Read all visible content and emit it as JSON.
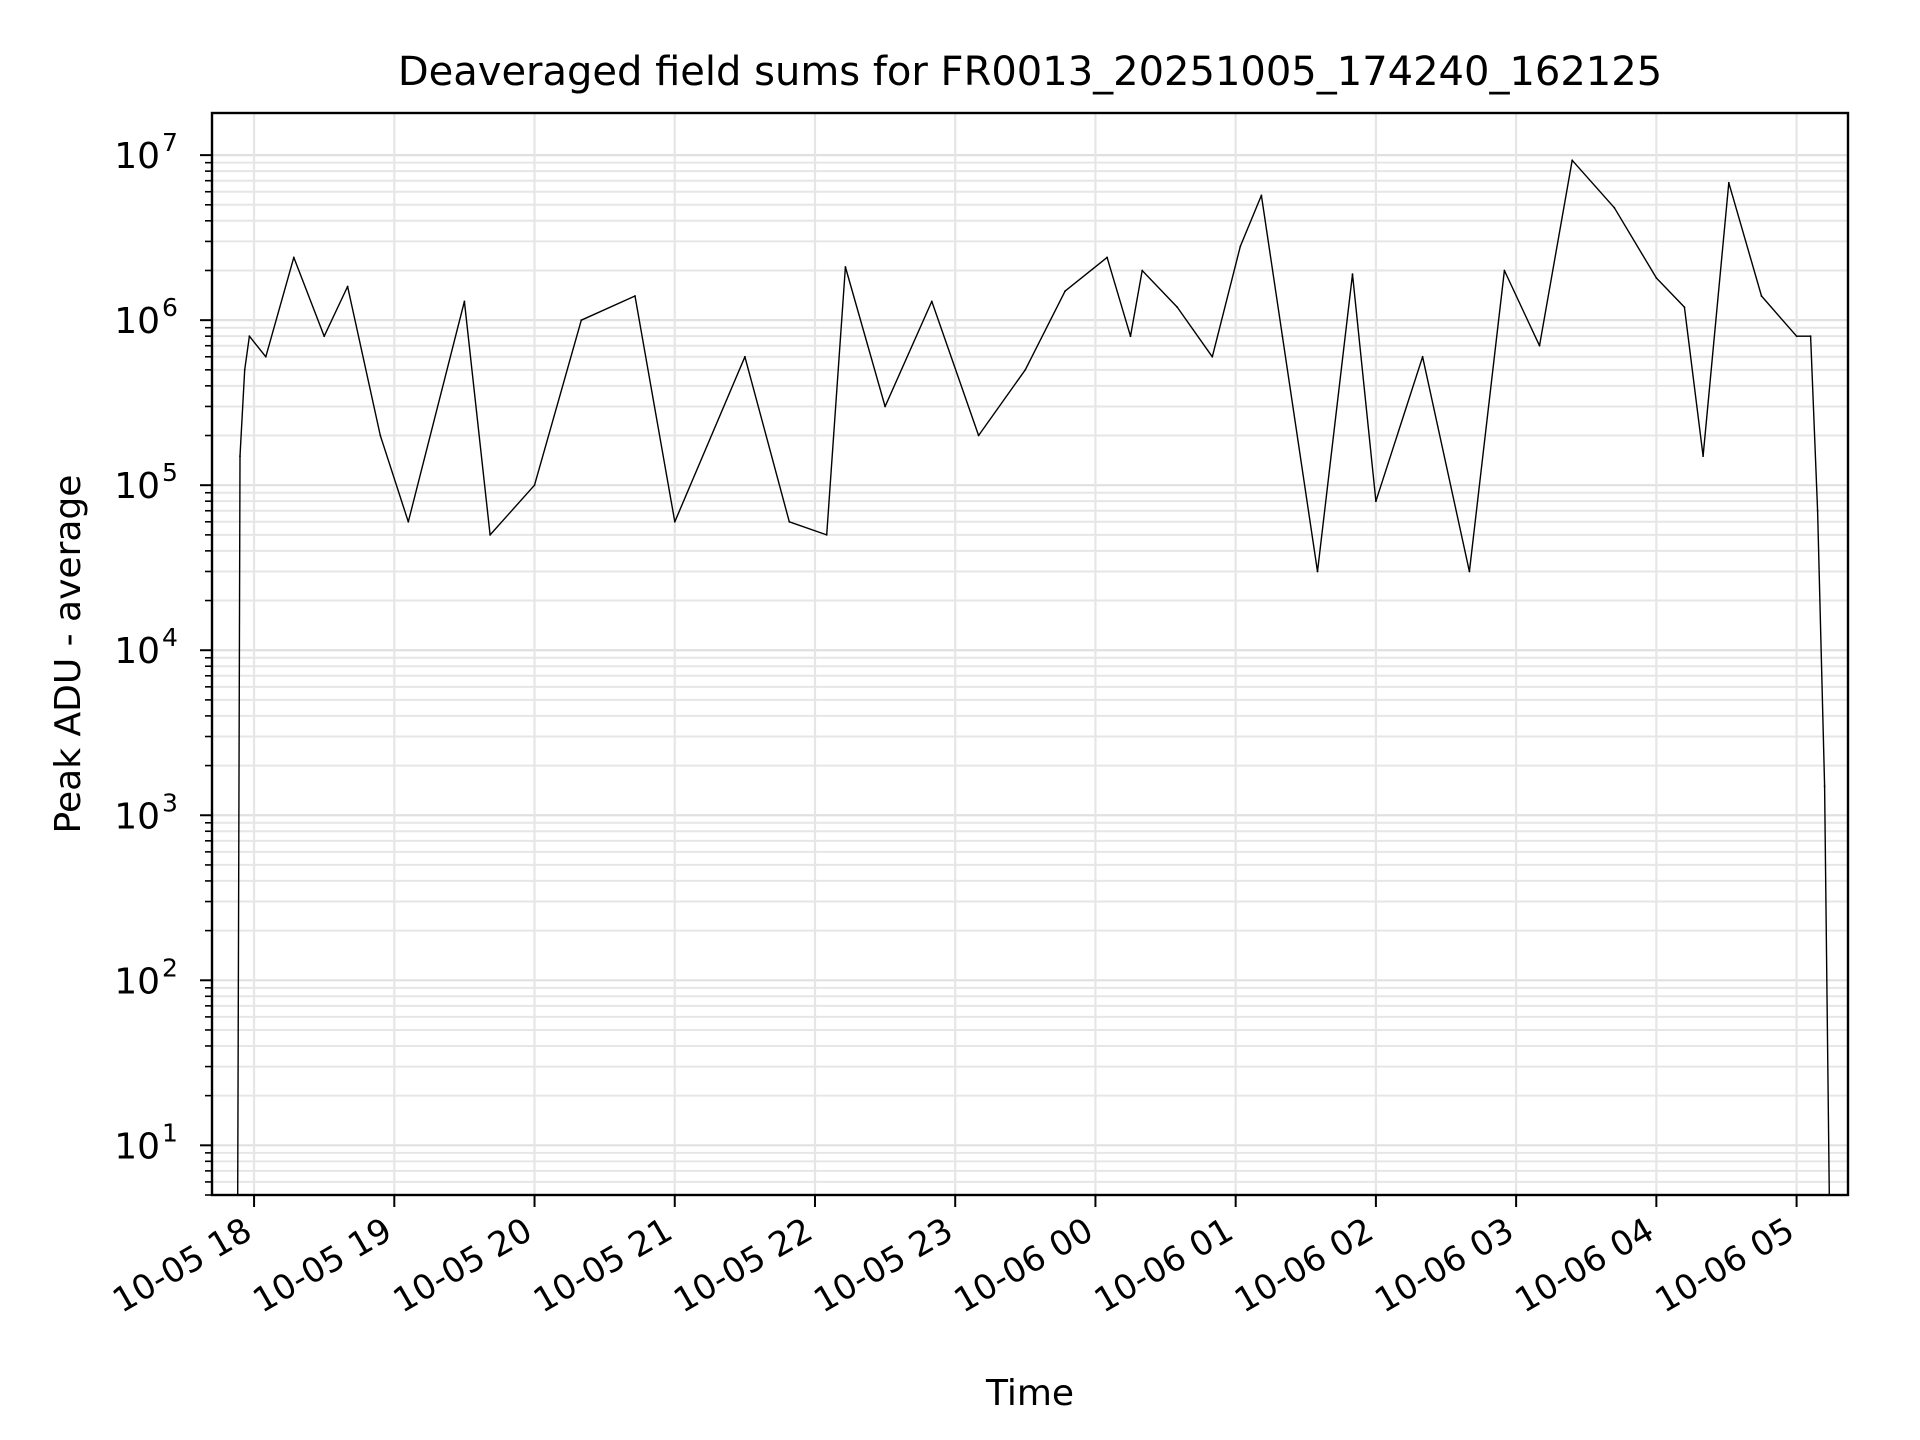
{
  "chart_data": {
    "type": "line",
    "title": "Deaveraged field sums for FR0013_20251005_174240_162125",
    "xlabel": "Time",
    "ylabel": "Peak ADU - average",
    "yscale": "log",
    "ylim": [
      5,
      18000000
    ],
    "xlim": [
      "10-05 17:42",
      "10-06 05:22"
    ],
    "grid": "major and minor",
    "line_color": "#000000",
    "x_ticks": [
      {
        "label": "10-05 18",
        "time": "10-05 18:00"
      },
      {
        "label": "10-05 19",
        "time": "10-05 19:00"
      },
      {
        "label": "10-05 20",
        "time": "10-05 20:00"
      },
      {
        "label": "10-05 21",
        "time": "10-05 21:00"
      },
      {
        "label": "10-05 22",
        "time": "10-05 22:00"
      },
      {
        "label": "10-05 23",
        "time": "10-05 23:00"
      },
      {
        "label": "10-06 00",
        "time": "10-06 00:00"
      },
      {
        "label": "10-06 01",
        "time": "10-06 01:00"
      },
      {
        "label": "10-06 02",
        "time": "10-06 02:00"
      },
      {
        "label": "10-06 03",
        "time": "10-06 03:00"
      },
      {
        "label": "10-06 04",
        "time": "10-06 04:00"
      },
      {
        "label": "10-06 05",
        "time": "10-06 05:00"
      }
    ],
    "y_ticks": [
      {
        "value": 10,
        "base": "10",
        "exp": "1"
      },
      {
        "value": 100,
        "base": "10",
        "exp": "2"
      },
      {
        "value": 1000,
        "base": "10",
        "exp": "3"
      },
      {
        "value": 10000,
        "base": "10",
        "exp": "4"
      },
      {
        "value": 100000,
        "base": "10",
        "exp": "5"
      },
      {
        "value": 1000000,
        "base": "10",
        "exp": "6"
      },
      {
        "value": 10000000,
        "base": "10",
        "exp": "7"
      }
    ],
    "series": [
      {
        "points": [
          [
            "10-05 17:53",
            5
          ],
          [
            "10-05 17:54",
            150000
          ],
          [
            "10-05 17:56",
            500000
          ],
          [
            "10-05 17:58",
            800000
          ],
          [
            "10-05 18:05",
            600000
          ],
          [
            "10-05 18:17",
            2400000
          ],
          [
            "10-05 18:30",
            800000
          ],
          [
            "10-05 18:40",
            1600000
          ],
          [
            "10-05 18:54",
            200000
          ],
          [
            "10-05 19:06",
            60000
          ],
          [
            "10-05 19:30",
            1300000
          ],
          [
            "10-05 19:41",
            50000
          ],
          [
            "10-05 20:00",
            100000
          ],
          [
            "10-05 20:20",
            1000000
          ],
          [
            "10-05 20:43",
            1400000
          ],
          [
            "10-05 21:00",
            60000
          ],
          [
            "10-05 21:30",
            600000
          ],
          [
            "10-05 21:49",
            60000
          ],
          [
            "10-05 22:05",
            50000
          ],
          [
            "10-05 22:13",
            2100000
          ],
          [
            "10-05 22:30",
            300000
          ],
          [
            "10-05 22:50",
            1300000
          ],
          [
            "10-05 23:10",
            200000
          ],
          [
            "10-05 23:30",
            500000
          ],
          [
            "10-05 23:47",
            1500000
          ],
          [
            "10-06 00:05",
            2400000
          ],
          [
            "10-06 00:15",
            800000
          ],
          [
            "10-06 00:20",
            2000000
          ],
          [
            "10-06 00:35",
            1200000
          ],
          [
            "10-06 00:50",
            600000
          ],
          [
            "10-06 01:02",
            2800000
          ],
          [
            "10-06 01:11",
            5700000
          ],
          [
            "10-06 01:20",
            800000
          ],
          [
            "10-06 01:35",
            30000
          ],
          [
            "10-06 01:50",
            1900000
          ],
          [
            "10-06 02:00",
            80000
          ],
          [
            "10-06 02:20",
            600000
          ],
          [
            "10-06 02:40",
            30000
          ],
          [
            "10-06 02:55",
            2000000
          ],
          [
            "10-06 03:10",
            700000
          ],
          [
            "10-06 03:24",
            9300000
          ],
          [
            "10-06 03:42",
            4800000
          ],
          [
            "10-06 04:00",
            1800000
          ],
          [
            "10-06 04:12",
            1200000
          ],
          [
            "10-06 04:20",
            150000
          ],
          [
            "10-06 04:31",
            6800000
          ],
          [
            "10-06 04:45",
            1400000
          ],
          [
            "10-06 05:00",
            800000
          ],
          [
            "10-06 05:06",
            800000
          ],
          [
            "10-06 05:09",
            70000
          ],
          [
            "10-06 05:12",
            1500
          ],
          [
            "10-06 05:14",
            5
          ]
        ]
      }
    ]
  }
}
